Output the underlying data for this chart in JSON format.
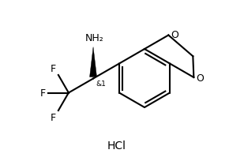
{
  "bg_color": "#ffffff",
  "line_color": "#000000",
  "line_width": 1.5,
  "font_size_label": 9,
  "font_size_small": 6.5,
  "font_size_hcl": 10,
  "hcl_text": "HCl",
  "nh2_text": "NH₂",
  "and1_text": "&1"
}
